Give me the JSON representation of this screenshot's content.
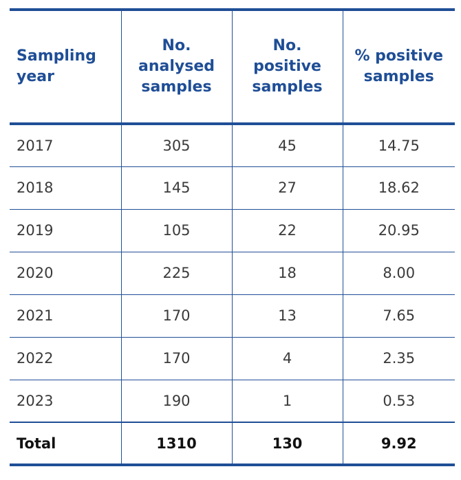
{
  "table": {
    "headers": [
      "Sampling year",
      "No. analysed samples",
      "No. positive samples",
      "% positive samples"
    ],
    "rows": [
      {
        "year": "2017",
        "analysed": "305",
        "positive": "45",
        "percent": "14.75"
      },
      {
        "year": "2018",
        "analysed": "145",
        "positive": "27",
        "percent": "18.62"
      },
      {
        "year": "2019",
        "analysed": "105",
        "positive": "22",
        "percent": "20.95"
      },
      {
        "year": "2020",
        "analysed": "225",
        "positive": "18",
        "percent": "8.00"
      },
      {
        "year": "2021",
        "analysed": "170",
        "positive": "13",
        "percent": "7.65"
      },
      {
        "year": "2022",
        "analysed": "170",
        "positive": "4",
        "percent": "2.35"
      },
      {
        "year": "2023",
        "analysed": "190",
        "positive": "1",
        "percent": "0.53"
      }
    ],
    "total": {
      "label": "Total",
      "analysed": "1310",
      "positive": "130",
      "percent": "9.92"
    }
  },
  "colors": {
    "accent": "#1f4e96",
    "text": "#3a3a3a"
  }
}
